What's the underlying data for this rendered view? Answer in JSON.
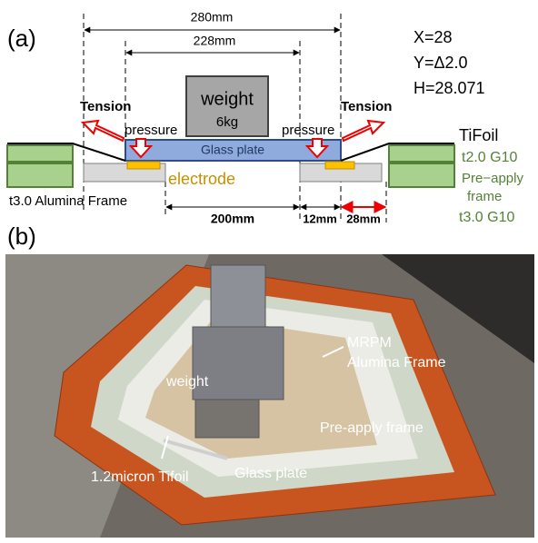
{
  "panel_a": {
    "label": "(a)",
    "dim_280": "280mm",
    "dim_228": "228mm",
    "params": [
      "X=28",
      "Y=Δ2.0",
      "H=28.071"
    ],
    "weight": [
      "weight",
      "6kg"
    ],
    "tension": [
      "Tension",
      "Tension"
    ],
    "pressure": [
      "pressure",
      "pressure"
    ],
    "glass_plate": "Glass plate",
    "tifoil": "TiFoil",
    "g10_top": "t2.0 G10",
    "pre_apply_frame": [
      "Pre−apply",
      "frame"
    ],
    "g10_bottom": "t3.0 G10",
    "electrode": "electrode",
    "alumina_frame": "t3.0 Alumina Frame",
    "dim_200": "200mm",
    "dim_12": "12mm",
    "dim_28": "28mm"
  },
  "panel_b": {
    "label": "(b)",
    "weight": "weight",
    "mrpm_frame": [
      "MRPM",
      "Alumina Frame"
    ],
    "pre_apply_frame": "Pre-apply frame",
    "tifoil": "1.2micron Tifoil",
    "glass_plate": "Glass plate"
  }
}
